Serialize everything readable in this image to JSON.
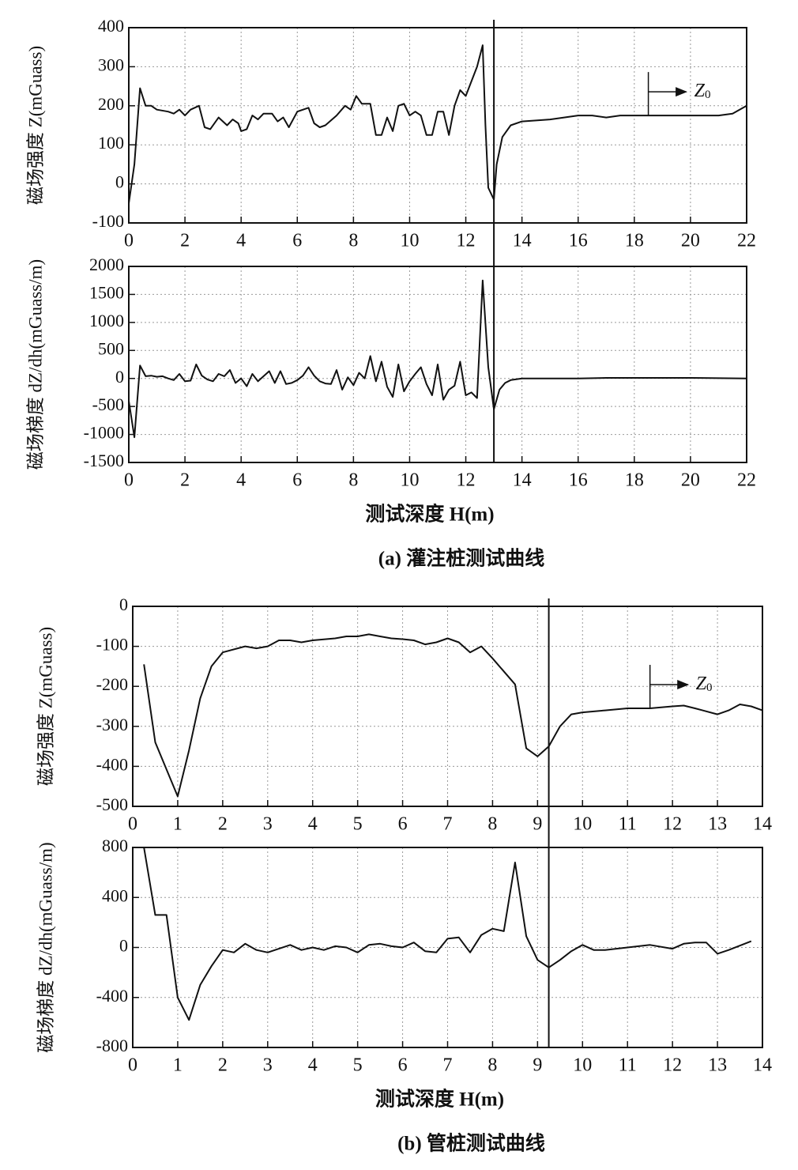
{
  "chart_data": [
    {
      "type": "line",
      "y_label": "磁场强度 Z(mGuass)",
      "color": "#111111",
      "grid": true,
      "xlim": [
        0,
        22
      ],
      "xticks": [
        0,
        2,
        4,
        6,
        8,
        10,
        12,
        14,
        16,
        18,
        20,
        22
      ],
      "ylim": [
        -100,
        400
      ],
      "yticks": [
        -100,
        0,
        100,
        200,
        300,
        400
      ],
      "vline": 13,
      "annotation": {
        "text": "Z",
        "subscript": "0",
        "x": 18.5,
        "y": 175
      },
      "x": [
        0,
        0.2,
        0.4,
        0.6,
        0.8,
        1,
        1.4,
        1.6,
        1.8,
        2,
        2.2,
        2.5,
        2.7,
        2.9,
        3.2,
        3.5,
        3.7,
        3.9,
        4.0,
        4.2,
        4.4,
        4.6,
        4.8,
        5.1,
        5.3,
        5.5,
        5.7,
        6.0,
        6.4,
        6.6,
        6.8,
        7.0,
        7.4,
        7.7,
        7.9,
        8.1,
        8.3,
        8.6,
        8.8,
        9.0,
        9.2,
        9.4,
        9.6,
        9.8,
        10.0,
        10.2,
        10.4,
        10.6,
        10.8,
        11.0,
        11.2,
        11.4,
        11.6,
        11.8,
        12.0,
        12.4,
        12.6,
        12.7,
        12.8,
        13.0,
        13.1,
        13.3,
        13.6,
        14,
        15,
        16,
        16.5,
        17,
        17.5,
        18,
        19,
        20,
        21,
        21.5,
        22
      ],
      "values": [
        -50,
        50,
        245,
        200,
        200,
        190,
        185,
        180,
        190,
        175,
        190,
        200,
        145,
        140,
        170,
        150,
        165,
        155,
        135,
        140,
        175,
        165,
        180,
        180,
        160,
        170,
        145,
        185,
        195,
        155,
        145,
        150,
        175,
        200,
        190,
        225,
        205,
        205,
        125,
        125,
        170,
        135,
        200,
        205,
        175,
        185,
        175,
        125,
        125,
        185,
        185,
        125,
        200,
        240,
        225,
        300,
        355,
        150,
        -10,
        -40,
        50,
        120,
        150,
        160,
        165,
        175,
        175,
        170,
        175,
        175,
        175,
        175,
        175,
        180,
        200
      ]
    },
    {
      "type": "line",
      "y_label": "磁场梯度 dZ/dh(mGuass/m)",
      "color": "#111111",
      "grid": true,
      "xlim": [
        0,
        22
      ],
      "xticks": [
        0,
        2,
        4,
        6,
        8,
        10,
        12,
        14,
        16,
        18,
        20,
        22
      ],
      "ylim": [
        -1500,
        2000
      ],
      "yticks": [
        -1500,
        -1000,
        -500,
        0,
        500,
        1000,
        1500,
        2000
      ],
      "vline": 13,
      "x_label": "测试深度 H(m)",
      "caption": "(a) 灌注桩测试曲线",
      "x": [
        0,
        0.2,
        0.4,
        0.6,
        0.8,
        1.0,
        1.2,
        1.4,
        1.6,
        1.8,
        2.0,
        2.2,
        2.4,
        2.6,
        2.8,
        3.0,
        3.2,
        3.4,
        3.6,
        3.8,
        4.0,
        4.2,
        4.4,
        4.6,
        4.8,
        5.0,
        5.2,
        5.4,
        5.6,
        5.8,
        6.0,
        6.2,
        6.4,
        6.6,
        6.8,
        7.0,
        7.2,
        7.4,
        7.6,
        7.8,
        8.0,
        8.2,
        8.4,
        8.6,
        8.8,
        9.0,
        9.2,
        9.4,
        9.6,
        9.8,
        10.0,
        10.2,
        10.4,
        10.6,
        10.8,
        11.0,
        11.2,
        11.4,
        11.6,
        11.8,
        12.0,
        12.2,
        12.4,
        12.6,
        12.8,
        13.0,
        13.2,
        13.4,
        13.6,
        14,
        16,
        17,
        18,
        20,
        22
      ],
      "values": [
        -400,
        -1050,
        230,
        40,
        50,
        30,
        40,
        0,
        -30,
        80,
        -50,
        -40,
        250,
        50,
        -20,
        -50,
        80,
        40,
        150,
        -80,
        0,
        -140,
        80,
        -50,
        40,
        130,
        -80,
        130,
        -100,
        -80,
        -30,
        50,
        200,
        50,
        -50,
        -90,
        -100,
        150,
        -200,
        20,
        -120,
        100,
        0,
        400,
        -50,
        300,
        -150,
        -330,
        250,
        -230,
        -50,
        80,
        200,
        -100,
        -300,
        250,
        -380,
        -200,
        -130,
        300,
        -300,
        -250,
        -350,
        1750,
        200,
        -550,
        -200,
        -80,
        -30,
        0,
        0,
        10,
        10,
        10,
        0
      ]
    },
    {
      "type": "line",
      "y_label": "磁场强度 Z(mGuass)",
      "color": "#111111",
      "grid": true,
      "xlim": [
        0,
        14
      ],
      "xticks": [
        0,
        1,
        2,
        3,
        4,
        5,
        6,
        7,
        8,
        9,
        10,
        11,
        12,
        13,
        14
      ],
      "ylim": [
        -500,
        0
      ],
      "yticks": [
        -500,
        -400,
        -300,
        -200,
        -100,
        0
      ],
      "vline": 9.25,
      "annotation": {
        "text": "Z",
        "subscript": "0",
        "x": 11.5,
        "y": -255
      },
      "x": [
        0.25,
        0.5,
        1.0,
        1.25,
        1.5,
        1.75,
        2.0,
        2.5,
        2.75,
        3.0,
        3.25,
        3.5,
        3.75,
        4.0,
        4.5,
        4.75,
        5.0,
        5.25,
        5.5,
        5.75,
        6.0,
        6.25,
        6.5,
        6.75,
        7.0,
        7.25,
        7.5,
        7.75,
        8.0,
        8.5,
        8.75,
        9.0,
        9.25,
        9.5,
        9.75,
        10.0,
        10.5,
        11.0,
        11.5,
        12.0,
        12.25,
        12.5,
        13.0,
        13.25,
        13.5,
        13.75,
        14
      ],
      "values": [
        -145,
        -340,
        -475,
        -360,
        -230,
        -150,
        -115,
        -100,
        -105,
        -100,
        -85,
        -85,
        -90,
        -85,
        -80,
        -75,
        -75,
        -70,
        -75,
        -80,
        -82,
        -85,
        -95,
        -90,
        -80,
        -90,
        -115,
        -100,
        -130,
        -195,
        -355,
        -375,
        -350,
        -300,
        -270,
        -265,
        -260,
        -255,
        -255,
        -250,
        -248,
        -255,
        -270,
        -260,
        -245,
        -250,
        -260
      ]
    },
    {
      "type": "line",
      "y_label": "磁场梯度 dZ/dh(mGuass/m)",
      "color": "#111111",
      "grid": true,
      "xlim": [
        0,
        14
      ],
      "xticks": [
        0,
        1,
        2,
        3,
        4,
        5,
        6,
        7,
        8,
        9,
        10,
        11,
        12,
        13,
        14
      ],
      "ylim": [
        -800,
        800
      ],
      "yticks": [
        -800,
        -400,
        0,
        400,
        800
      ],
      "vline": 9.25,
      "x_label": "测试深度 H(m)",
      "caption": "(b) 管桩测试曲线",
      "x": [
        0.25,
        0.5,
        0.75,
        1.0,
        1.25,
        1.5,
        1.75,
        2.0,
        2.25,
        2.5,
        2.75,
        3.0,
        3.25,
        3.5,
        3.75,
        4.0,
        4.25,
        4.5,
        4.75,
        5.0,
        5.25,
        5.5,
        5.75,
        6.0,
        6.25,
        6.5,
        6.75,
        7.0,
        7.25,
        7.5,
        7.75,
        8.0,
        8.25,
        8.5,
        8.75,
        9.0,
        9.25,
        9.5,
        9.75,
        10.0,
        10.25,
        10.5,
        11.0,
        11.5,
        12.0,
        12.25,
        12.5,
        12.75,
        13.0,
        13.25,
        13.75
      ],
      "values": [
        800,
        260,
        260,
        -400,
        -580,
        -300,
        -150,
        -20,
        -40,
        30,
        -20,
        -40,
        -10,
        20,
        -20,
        0,
        -20,
        10,
        0,
        -40,
        20,
        30,
        10,
        0,
        40,
        -30,
        -40,
        70,
        80,
        -40,
        100,
        150,
        130,
        680,
        90,
        -100,
        -160,
        -100,
        -30,
        20,
        -20,
        -20,
        0,
        20,
        -10,
        30,
        40,
        40,
        -50,
        -20,
        50
      ]
    }
  ]
}
